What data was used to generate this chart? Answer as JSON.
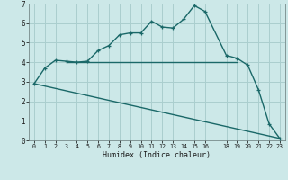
{
  "title": "",
  "xlabel": "Humidex (Indice chaleur)",
  "bg_color": "#cce8e8",
  "grid_color": "#aacece",
  "line_color": "#1a6868",
  "xlim": [
    -0.5,
    23.5
  ],
  "ylim": [
    0,
    7
  ],
  "xticks": [
    0,
    1,
    2,
    3,
    4,
    5,
    6,
    7,
    8,
    9,
    10,
    11,
    12,
    13,
    14,
    15,
    16,
    18,
    19,
    20,
    21,
    22,
    23
  ],
  "yticks": [
    0,
    1,
    2,
    3,
    4,
    5,
    6,
    7
  ],
  "curve1_x": [
    0,
    1,
    2,
    3,
    4,
    5,
    6,
    7,
    8,
    9,
    10,
    11,
    12,
    13,
    14,
    15,
    16,
    18,
    19,
    20,
    21,
    22,
    23
  ],
  "curve1_y": [
    2.9,
    3.7,
    4.1,
    4.05,
    4.0,
    4.05,
    4.6,
    4.85,
    5.4,
    5.5,
    5.5,
    6.1,
    5.8,
    5.75,
    6.2,
    6.9,
    6.6,
    4.35,
    4.2,
    3.85,
    2.6,
    0.85,
    0.1
  ],
  "curve2_x": [
    3,
    19
  ],
  "curve2_y": [
    4.0,
    4.0
  ],
  "curve3_x": [
    0,
    23
  ],
  "curve3_y": [
    2.9,
    0.1
  ],
  "marker_size": 3.5,
  "line_width": 1.0
}
